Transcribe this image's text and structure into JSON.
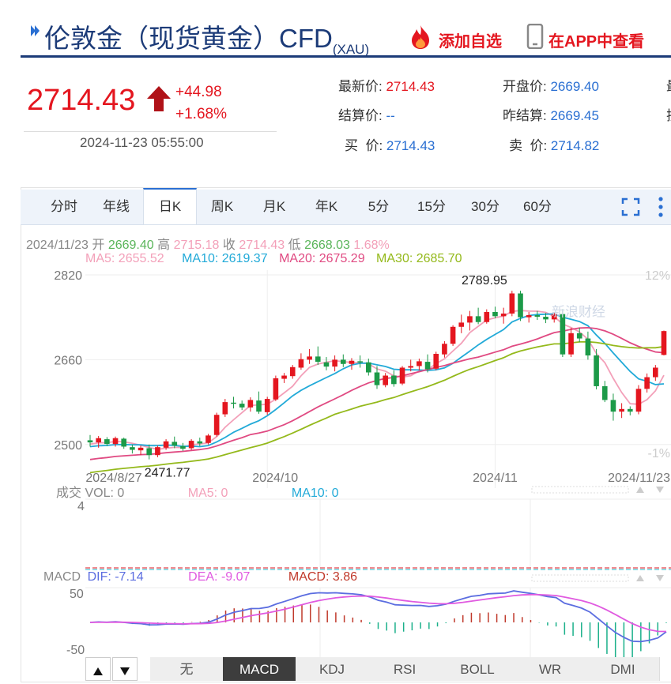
{
  "header": {
    "title": "伦敦金（现货黄金）CFD",
    "title_sub": "(XAU)",
    "add_watch": "添加自选",
    "view_app": "在APP中查看"
  },
  "quote": {
    "price": "2714.43",
    "change": "+44.98",
    "change_pct": "+1.68%",
    "time": "2024-11-23 05:55:00",
    "latest_label": "最新价:",
    "latest": "2714.43",
    "open_label": "开盘价:",
    "open": "2669.40",
    "settle_label": "结算价:",
    "settle": "--",
    "prev_settle_label": "昨结算:",
    "prev_settle": "2669.45",
    "buy_label": "买  价:",
    "buy": "2714.43",
    "sell_label": "卖  价:",
    "sell": "2714.82",
    "col3_a": "最",
    "col3_b": "振"
  },
  "tabs": [
    "分时",
    "年线",
    "日K",
    "周K",
    "月K",
    "年K",
    "5分",
    "15分",
    "30分",
    "60分"
  ],
  "active_tab": "日K",
  "ohlc_line": {
    "date": "2024/11/23",
    "open_label": "开",
    "open": "2669.40",
    "high_label": "高",
    "high": "2715.18",
    "close_label": "收",
    "close": "2714.43",
    "low_label": "低",
    "low": "2668.03",
    "pct": "1.68%"
  },
  "ma_line": {
    "ma5": "MA5: 2655.52",
    "ma10": "MA10: 2619.37",
    "ma20": "MA20: 2675.29",
    "ma30": "MA30: 2685.70"
  },
  "vol_line": {
    "label": "成交",
    "vol": "VOL: 0",
    "ma5": "MA5: 0",
    "ma10": "MA10: 0",
    "ytick": "4"
  },
  "macd_line": {
    "label": "MACD",
    "dif": "DIF: -7.14",
    "dea": "DEA: -9.07",
    "macd": "MACD: 3.86",
    "ytick_top": "50",
    "ytick_bot": "-50"
  },
  "bottom_tabs": [
    "无",
    "MACD",
    "KDJ",
    "RSI",
    "BOLL",
    "WR",
    "DMI"
  ],
  "active_bottom": "MACD",
  "watermark": "新浪财经",
  "colors": {
    "up": "#e4161f",
    "down": "#1c9a48",
    "ma5": "#f3a0b9",
    "ma10": "#22aad8",
    "ma20": "#e04a82",
    "ma30": "#94b91b",
    "dif": "#5b6de0",
    "dea": "#e05ae0"
  },
  "chart_data": {
    "type": "candlestick",
    "title": "",
    "y_ticks": [
      "2820",
      "2660",
      "2500"
    ],
    "y_right_ticks": [
      "12%",
      "-1%"
    ],
    "x_ticks": [
      "2024/8/27",
      "2024/10",
      "2024/11",
      "2024/11/23"
    ],
    "ylim": [
      2455,
      2820
    ],
    "annotations": [
      {
        "text": "2789.95",
        "value": 2789.95
      },
      {
        "text": "2471.77",
        "value": 2471.77
      }
    ],
    "candles": [
      [
        2508,
        2518,
        2496,
        2504
      ],
      [
        2504,
        2516,
        2494,
        2512
      ],
      [
        2510,
        2514,
        2497,
        2501
      ],
      [
        2501,
        2515,
        2496,
        2512
      ],
      [
        2511,
        2513,
        2492,
        2496
      ],
      [
        2495,
        2500,
        2483,
        2490
      ],
      [
        2489,
        2498,
        2480,
        2494
      ],
      [
        2493,
        2500,
        2472,
        2480
      ],
      [
        2480,
        2498,
        2476,
        2495
      ],
      [
        2494,
        2510,
        2490,
        2506
      ],
      [
        2505,
        2515,
        2493,
        2498
      ],
      [
        2497,
        2503,
        2488,
        2492
      ],
      [
        2493,
        2510,
        2490,
        2507
      ],
      [
        2506,
        2513,
        2497,
        2502
      ],
      [
        2503,
        2520,
        2500,
        2517
      ],
      [
        2518,
        2560,
        2515,
        2556
      ],
      [
        2557,
        2586,
        2552,
        2580
      ],
      [
        2579,
        2590,
        2568,
        2578
      ],
      [
        2577,
        2583,
        2565,
        2570
      ],
      [
        2570,
        2589,
        2562,
        2584
      ],
      [
        2583,
        2600,
        2558,
        2562
      ],
      [
        2561,
        2590,
        2556,
        2586
      ],
      [
        2585,
        2630,
        2582,
        2625
      ],
      [
        2624,
        2635,
        2616,
        2630
      ],
      [
        2629,
        2650,
        2624,
        2646
      ],
      [
        2645,
        2672,
        2641,
        2661
      ],
      [
        2660,
        2680,
        2652,
        2666
      ],
      [
        2666,
        2685,
        2650,
        2656
      ],
      [
        2655,
        2665,
        2640,
        2647
      ],
      [
        2647,
        2668,
        2638,
        2660
      ],
      [
        2660,
        2670,
        2646,
        2652
      ],
      [
        2652,
        2663,
        2641,
        2658
      ],
      [
        2657,
        2668,
        2645,
        2655
      ],
      [
        2655,
        2662,
        2630,
        2636
      ],
      [
        2636,
        2648,
        2605,
        2612
      ],
      [
        2612,
        2635,
        2608,
        2630
      ],
      [
        2630,
        2640,
        2609,
        2614
      ],
      [
        2615,
        2648,
        2612,
        2645
      ],
      [
        2645,
        2660,
        2638,
        2648
      ],
      [
        2648,
        2662,
        2640,
        2657
      ],
      [
        2656,
        2670,
        2636,
        2642
      ],
      [
        2643,
        2675,
        2640,
        2671
      ],
      [
        2670,
        2695,
        2664,
        2690
      ],
      [
        2690,
        2725,
        2686,
        2722
      ],
      [
        2722,
        2745,
        2710,
        2730
      ],
      [
        2730,
        2752,
        2715,
        2742
      ],
      [
        2742,
        2758,
        2727,
        2731
      ],
      [
        2731,
        2755,
        2728,
        2750
      ],
      [
        2750,
        2760,
        2738,
        2742
      ],
      [
        2742,
        2758,
        2728,
        2747
      ],
      [
        2747,
        2790,
        2742,
        2785
      ],
      [
        2785,
        2790,
        2733,
        2740
      ],
      [
        2740,
        2750,
        2730,
        2744
      ],
      [
        2744,
        2752,
        2735,
        2741
      ],
      [
        2741,
        2748,
        2729,
        2736
      ],
      [
        2736,
        2749,
        2730,
        2746
      ],
      [
        2746,
        2755,
        2665,
        2670
      ],
      [
        2670,
        2720,
        2665,
        2710
      ],
      [
        2710,
        2720,
        2693,
        2700
      ],
      [
        2700,
        2713,
        2660,
        2668
      ],
      [
        2668,
        2680,
        2604,
        2610
      ],
      [
        2610,
        2620,
        2580,
        2584
      ],
      [
        2584,
        2596,
        2545,
        2562
      ],
      [
        2562,
        2578,
        2550,
        2567
      ],
      [
        2567,
        2572,
        2555,
        2562
      ],
      [
        2562,
        2612,
        2557,
        2605
      ],
      [
        2605,
        2634,
        2598,
        2627
      ],
      [
        2627,
        2650,
        2620,
        2645
      ],
      [
        2669,
        2715,
        2668,
        2714
      ]
    ]
  }
}
